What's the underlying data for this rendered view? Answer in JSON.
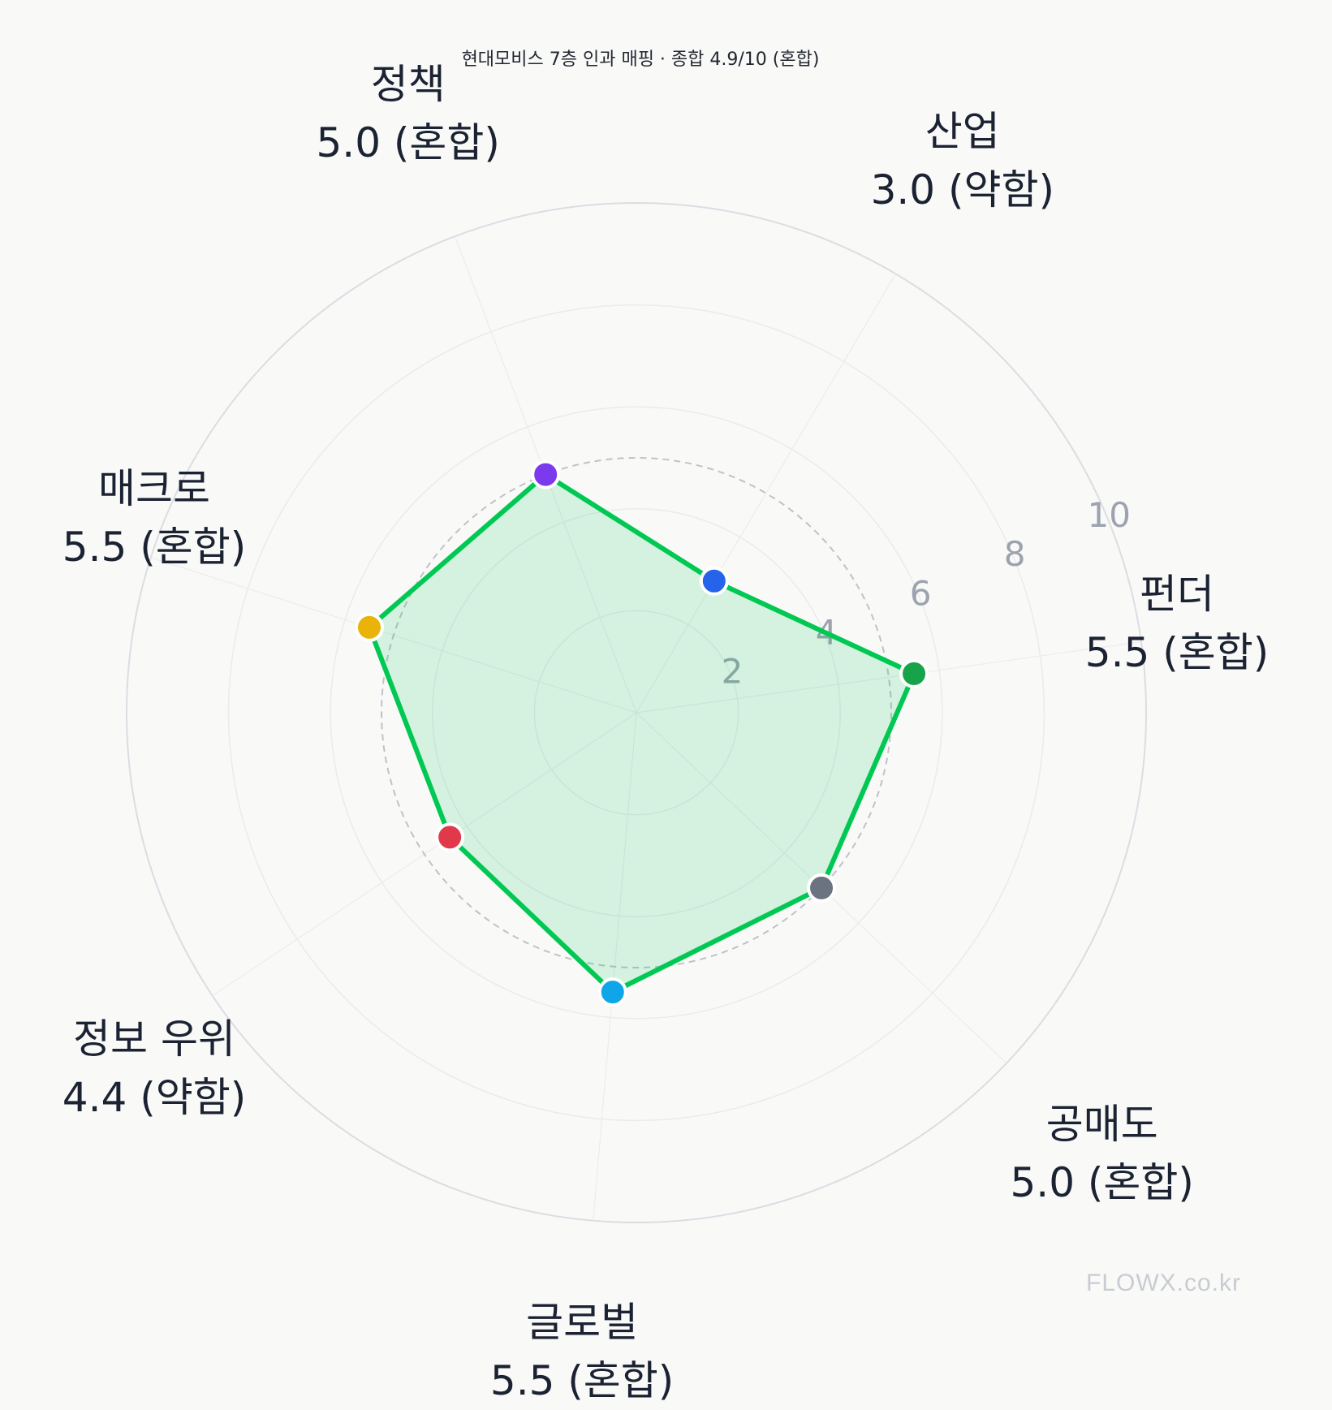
{
  "chart_data": {
    "type": "radar",
    "title": "현대모비스 7층 인과 매핑 · 종합 4.9/10 (혼합)",
    "rmax": 10,
    "radial_ticks": [
      "2",
      "4",
      "6",
      "8",
      "10"
    ],
    "reference_level": 5,
    "categories": [
      {
        "name": "펀더",
        "value": 5.5,
        "value_label": "5.5 (혼합)",
        "color": "#16a34a"
      },
      {
        "name": "산업",
        "value": 3.0,
        "value_label": "3.0 (약함)",
        "color": "#2563eb"
      },
      {
        "name": "정책",
        "value": 5.0,
        "value_label": "5.0 (혼합)",
        "color": "#7c3aed"
      },
      {
        "name": "매크로",
        "value": 5.5,
        "value_label": "5.5 (혼합)",
        "color": "#eab308"
      },
      {
        "name": "정보 우위",
        "value": 4.4,
        "value_label": "4.4 (약함)",
        "color": "#e03a4a"
      },
      {
        "name": "글로벌",
        "value": 5.5,
        "value_label": "5.5 (혼합)",
        "color": "#0ea5e9"
      },
      {
        "name": "공매도",
        "value": 5.0,
        "value_label": "5.0 (혼합)",
        "color": "#6b7280"
      }
    ],
    "series_color": "#00c853",
    "grid": true
  },
  "watermark": "FLOWX.co.kr"
}
